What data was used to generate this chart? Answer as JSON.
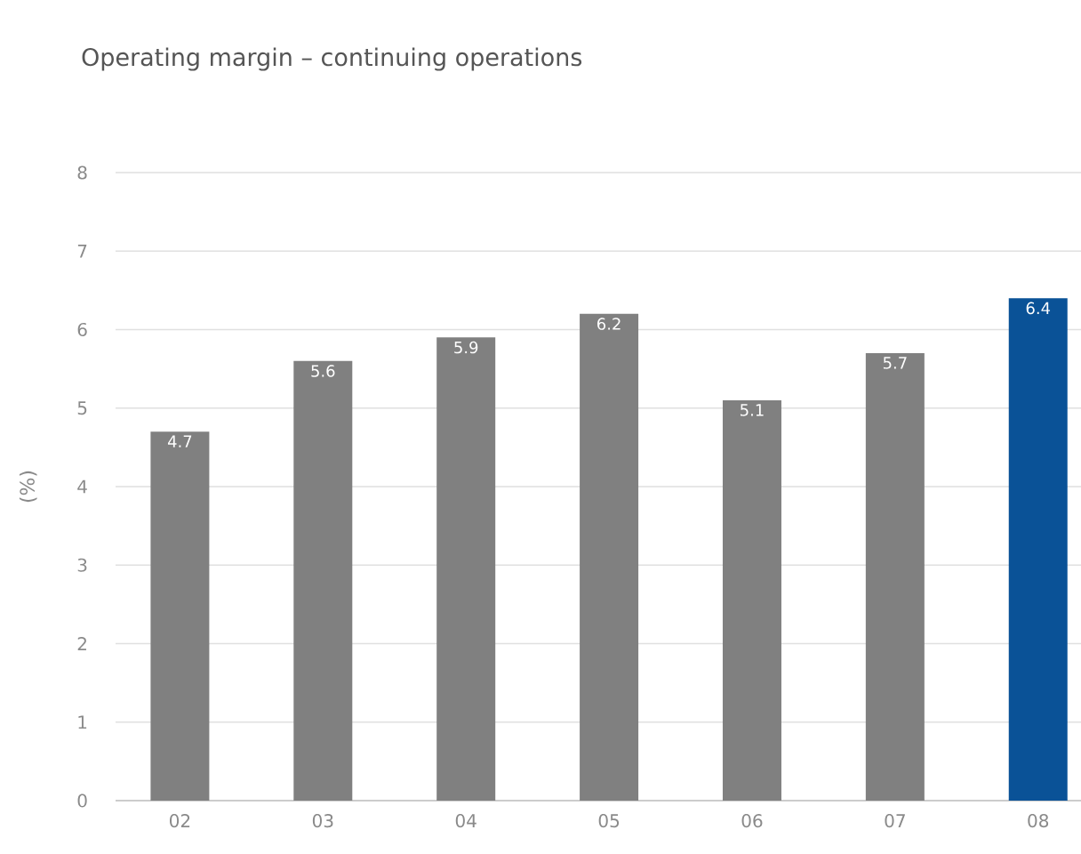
{
  "chart_data": {
    "type": "bar",
    "title": "Operating margin – continuing operations",
    "ylabel": "(%)",
    "categories": [
      "02",
      "03",
      "04",
      "05",
      "06",
      "07",
      "08"
    ],
    "values": [
      4.7,
      5.6,
      5.9,
      6.2,
      5.1,
      5.7,
      6.4
    ],
    "colors": [
      "#808080",
      "#808080",
      "#808080",
      "#808080",
      "#808080",
      "#808080",
      "#0a5297"
    ],
    "ylim": [
      0,
      8
    ],
    "yticks": [
      0,
      1,
      2,
      3,
      4,
      5,
      6,
      7,
      8
    ],
    "grid": "y",
    "data_labels": true
  }
}
